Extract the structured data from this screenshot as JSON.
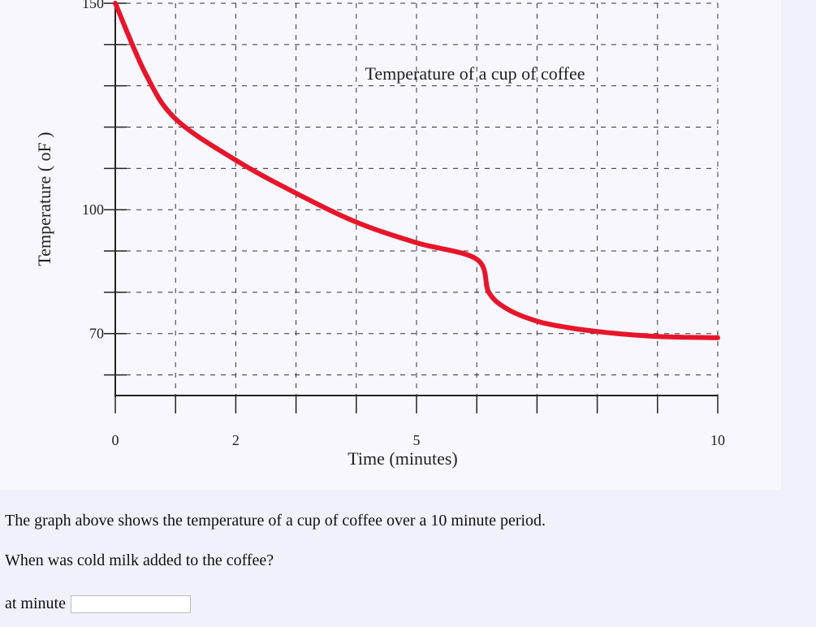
{
  "chart_data": {
    "type": "line",
    "title": "Temperature of a cup of coffee",
    "xlabel": "Time (minutes)",
    "ylabel": "Temperature ( oF )",
    "xlim": [
      0,
      10
    ],
    "ylim": [
      55,
      150
    ],
    "x_ticks": [
      0,
      2,
      5,
      10
    ],
    "y_ticks": [
      70,
      100,
      150
    ],
    "grid": true,
    "series": [
      {
        "color": "#e8152a",
        "x": [
          0,
          0.5,
          1,
          2,
          3,
          4,
          5,
          6,
          6.2,
          6.5,
          7,
          7.5,
          8,
          8.5,
          9,
          9.5,
          10
        ],
        "y": [
          150,
          133,
          122,
          112,
          104,
          97,
          92,
          88,
          80,
          76,
          73,
          71.5,
          70.5,
          69.8,
          69.3,
          69.1,
          69
        ]
      }
    ]
  },
  "question": {
    "line1": "The graph above shows the temperature of a cup of coffee over a 10 minute period.",
    "line2": "When was cold milk added to the coffee?",
    "answer_label": "at minute",
    "answer_value": ""
  }
}
